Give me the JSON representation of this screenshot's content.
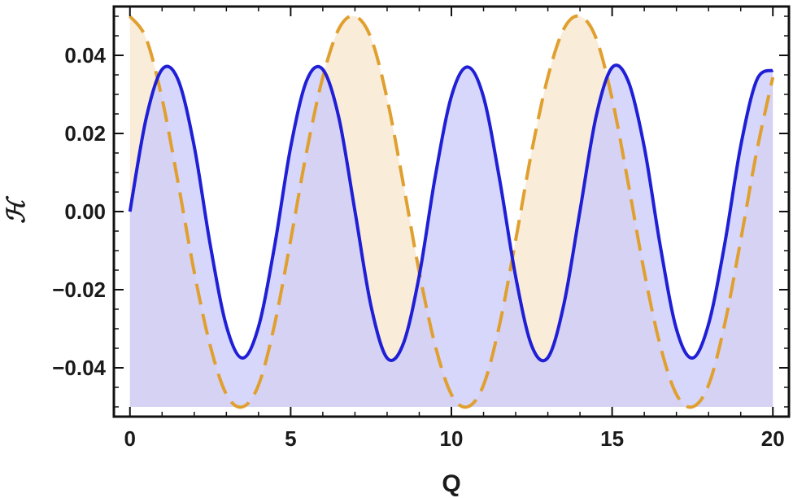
{
  "chart_data": {
    "type": "line",
    "title": "",
    "xlabel": "Q",
    "ylabel": "ℋ",
    "xlim": [
      -0.5,
      20.5
    ],
    "ylim": [
      -0.0525,
      0.0525
    ],
    "fill_baseline": -0.05,
    "xticks": [
      0,
      5,
      10,
      15,
      20
    ],
    "xtick_labels": [
      "0",
      "5",
      "10",
      "15",
      "20"
    ],
    "yticks": [
      -0.04,
      -0.02,
      0.0,
      0.02,
      0.04
    ],
    "ytick_labels": [
      "−0.04",
      "−0.02",
      "0.00",
      "0.02",
      "0.04"
    ],
    "grid": false,
    "legend": "none",
    "series": [
      {
        "style": "solid",
        "color": "#1f1fd6",
        "fill_color": "#c9c9fb",
        "x": [
          0,
          0.5,
          1.0,
          1.5,
          2.0,
          2.5,
          3.0,
          3.5,
          4.0,
          4.5,
          5.0,
          5.5,
          6.0,
          6.5,
          7.0,
          7.5,
          8.0,
          8.5,
          9.0,
          9.5,
          10.0,
          10.5,
          11.0,
          11.5,
          12.0,
          12.5,
          13.0,
          13.5,
          14.0,
          14.5,
          15.0,
          15.5,
          16.0,
          16.5,
          17.0,
          17.5,
          18.0,
          18.5,
          19.0,
          19.5,
          20.0
        ],
        "y": [
          0.0,
          0.0237,
          0.0364,
          0.0337,
          0.0167,
          -0.0086,
          -0.0293,
          -0.0375,
          -0.0295,
          -0.0088,
          0.0165,
          0.0336,
          0.0364,
          0.024,
          0.0001,
          -0.0242,
          -0.0375,
          -0.0339,
          -0.0164,
          0.0091,
          0.0295,
          0.037,
          0.0293,
          0.0082,
          -0.0167,
          -0.0344,
          -0.0374,
          -0.0237,
          0.0002,
          0.0243,
          0.0369,
          0.0334,
          0.0165,
          -0.0089,
          -0.0301,
          -0.0375,
          -0.0288,
          -0.0084,
          0.0168,
          0.0337,
          0.0362
        ]
      },
      {
        "style": "dashed",
        "color": "#e0a030",
        "fill_color": "#f7e6cc",
        "x": [
          0,
          0.5,
          1.0,
          1.5,
          2.0,
          2.5,
          3.0,
          3.5,
          4.0,
          4.5,
          5.0,
          5.5,
          6.0,
          6.5,
          7.0,
          7.5,
          8.0,
          8.5,
          9.0,
          9.5,
          10.0,
          10.5,
          11.0,
          11.5,
          12.0,
          12.5,
          13.0,
          13.5,
          14.0,
          14.5,
          15.0,
          15.5,
          16.0,
          16.5,
          17.0,
          17.5,
          18.0,
          18.5,
          19.0,
          19.5,
          20.0
        ],
        "y": [
          0.05,
          0.0444,
          0.0289,
          0.0073,
          -0.0155,
          -0.0344,
          -0.0468,
          -0.05,
          -0.0444,
          -0.0289,
          -0.0073,
          0.0155,
          0.0344,
          0.0468,
          0.05,
          0.0444,
          0.0289,
          0.0073,
          -0.0155,
          -0.0344,
          -0.0468,
          -0.05,
          -0.0444,
          -0.0289,
          -0.0073,
          0.0155,
          0.0344,
          0.0468,
          0.05,
          0.0444,
          0.0289,
          0.0073,
          -0.0155,
          -0.0344,
          -0.0468,
          -0.05,
          -0.0444,
          -0.0289,
          -0.0073,
          0.0155,
          0.0344
        ]
      }
    ]
  }
}
